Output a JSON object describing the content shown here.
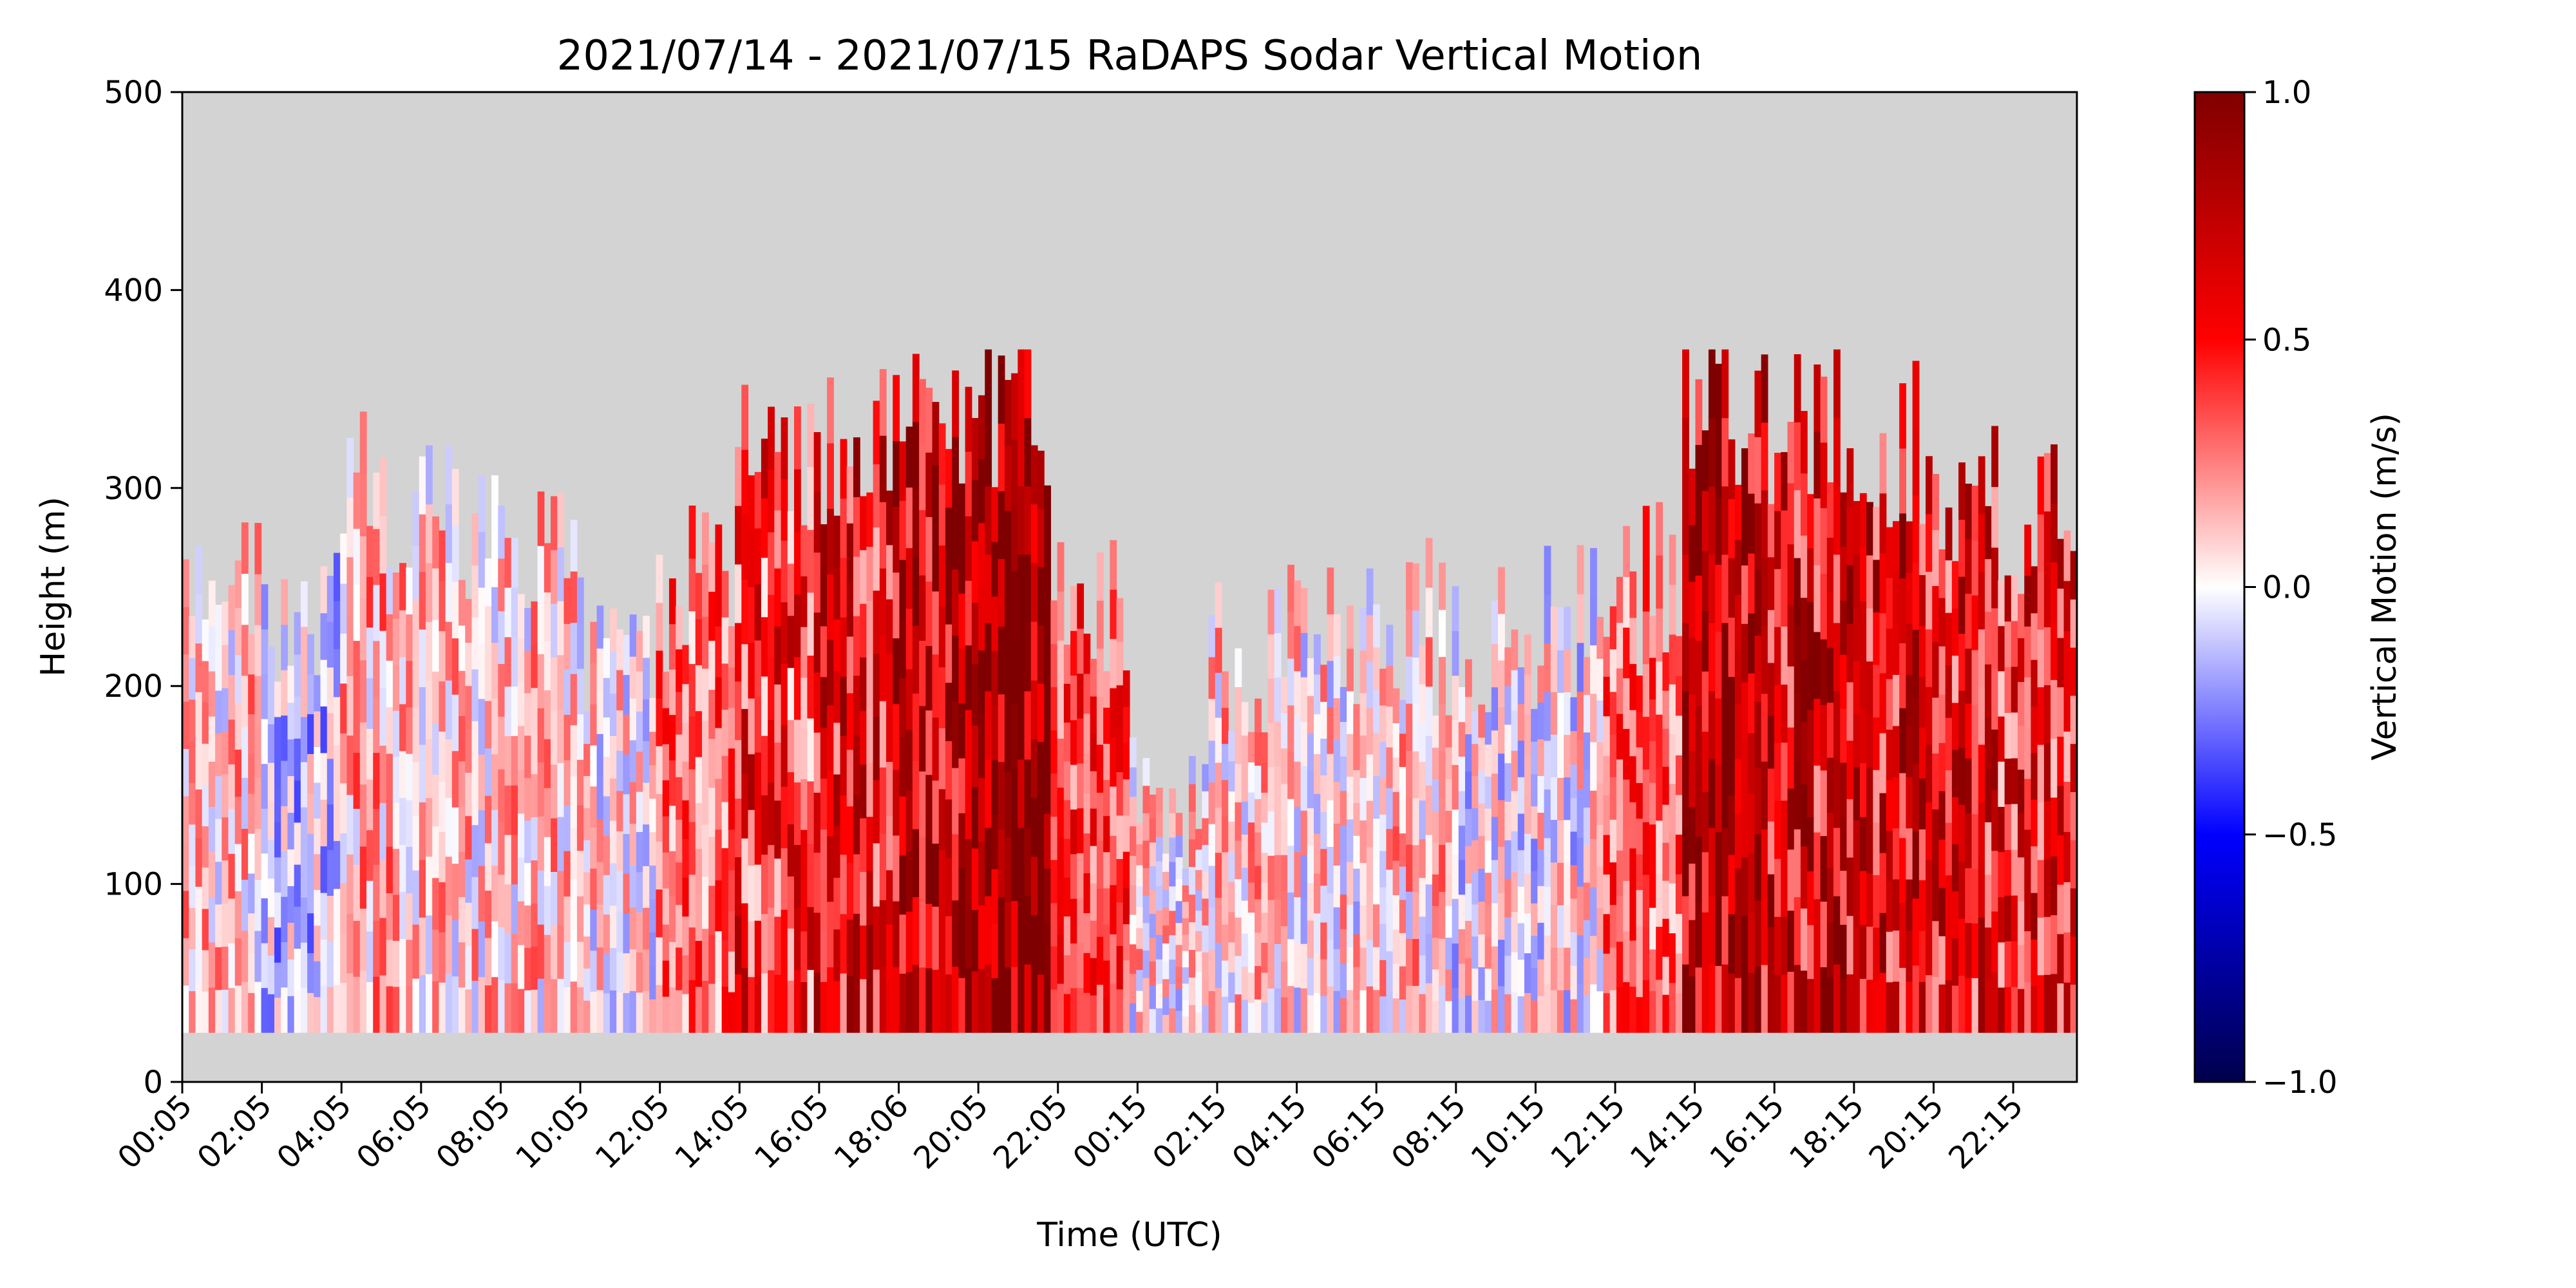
{
  "chart_data": {
    "type": "heatmap",
    "title": "2021/07/14 - 2021/07/15 RaDAPS Sodar Vertical Motion",
    "xlabel": "Time (UTC)",
    "ylabel": "Height (m)",
    "ylim": [
      0,
      500
    ],
    "x_tick_labels": [
      "00:05",
      "02:05",
      "04:05",
      "06:05",
      "08:05",
      "10:05",
      "12:05",
      "14:05",
      "16:05",
      "18:06",
      "20:05",
      "22:05",
      "00:15",
      "02:15",
      "04:15",
      "06:15",
      "08:15",
      "10:15",
      "12:15",
      "14:15",
      "16:15",
      "18:15",
      "20:15",
      "22:15"
    ],
    "y_ticks": [
      0,
      100,
      200,
      300,
      400,
      500
    ],
    "grid": false,
    "background_color": "#d3d3d3",
    "colorbar": {
      "label": "Vertical Motion (m/s)",
      "range": [
        -1.0,
        1.0
      ],
      "ticks": [
        1.0,
        0.5,
        0.0,
        -0.5,
        -1.0
      ],
      "tick_labels": [
        "1.0",
        "0.5",
        "0.0",
        "−0.5",
        "−1.0"
      ],
      "colormap": "seismic",
      "colors": [
        "#00004c",
        "#0000ff",
        "#ffffff",
        "#ff0000",
        "#7f0000"
      ]
    },
    "data_range_height_m": [
      25,
      370
    ],
    "series_note": "",
    "profiles": [
      {
        "period": "00:05-02:05",
        "top_m": 250,
        "mean_ms": 0.1
      },
      {
        "period": "02:05-04:05",
        "top_m": 235,
        "mean_ms": -0.1
      },
      {
        "period": "04:05-06:05",
        "top_m": 300,
        "mean_ms": 0.15
      },
      {
        "period": "06:05-08:05",
        "top_m": 280,
        "mean_ms": 0.1
      },
      {
        "period": "08:05-10:05",
        "top_m": 260,
        "mean_ms": 0.1
      },
      {
        "period": "10:05-12:05",
        "top_m": 220,
        "mean_ms": 0.05
      },
      {
        "period": "12:05-14:05",
        "top_m": 250,
        "mean_ms": 0.3
      },
      {
        "period": "14:05-16:05",
        "top_m": 310,
        "mean_ms": 0.45
      },
      {
        "period": "16:05-18:06",
        "top_m": 320,
        "mean_ms": 0.55
      },
      {
        "period": "18:06-20:05",
        "top_m": 330,
        "mean_ms": 0.7
      },
      {
        "period": "20:05-22:05",
        "top_m": 340,
        "mean_ms": 0.85
      },
      {
        "period": "22:05-00:15",
        "top_m": 240,
        "mean_ms": 0.4
      },
      {
        "period": "00:15-02:15",
        "top_m": 150,
        "mean_ms": 0.05
      },
      {
        "period": "02:15-04:15",
        "top_m": 220,
        "mean_ms": 0.1
      },
      {
        "period": "04:15-06:15",
        "top_m": 225,
        "mean_ms": 0.05
      },
      {
        "period": "06:15-08:15",
        "top_m": 230,
        "mean_ms": 0.1
      },
      {
        "period": "08:15-10:15",
        "top_m": 225,
        "mean_ms": 0.0
      },
      {
        "period": "10:15-12:15",
        "top_m": 230,
        "mean_ms": 0.0
      },
      {
        "period": "12:15-14:15",
        "top_m": 250,
        "mean_ms": 0.3
      },
      {
        "period": "14:15-16:15",
        "top_m": 340,
        "mean_ms": 0.7
      },
      {
        "period": "16:15-18:15",
        "top_m": 330,
        "mean_ms": 0.6
      },
      {
        "period": "18:15-20:15",
        "top_m": 320,
        "mean_ms": 0.6
      },
      {
        "period": "20:15-22:15",
        "top_m": 300,
        "mean_ms": 0.55
      },
      {
        "period": "22:15-23:55",
        "top_m": 290,
        "mean_ms": 0.5
      }
    ]
  }
}
